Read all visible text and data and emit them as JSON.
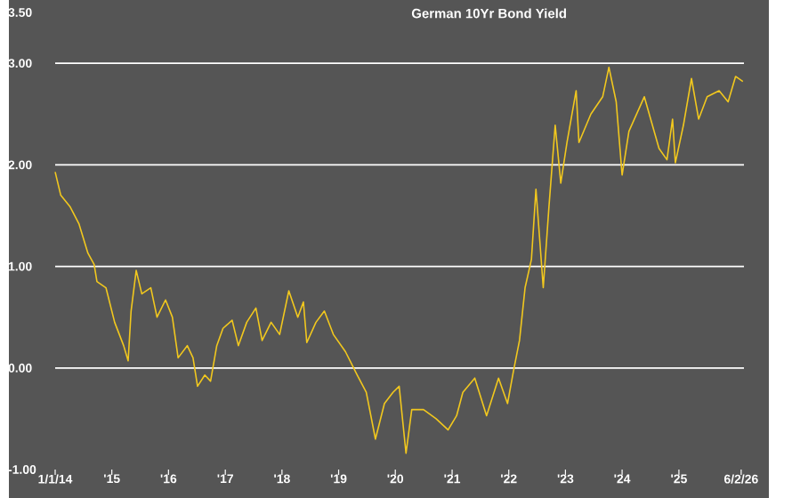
{
  "chart_data": {
    "type": "line",
    "title": "German 10Yr Bond Yield",
    "x": [
      "2014-01-01",
      "2014-02-06",
      "2014-04-06",
      "2014-06-03",
      "2014-07-31",
      "2014-09-09",
      "2014-09-27",
      "2014-11-24",
      "2015-01-19",
      "2015-03-18",
      "2015-04-16",
      "2015-05-05",
      "2015-06-07",
      "2015-07-13",
      "2015-09-09",
      "2015-10-19",
      "2015-12-13",
      "2016-01-26",
      "2016-03-03",
      "2016-05-01",
      "2016-06-07",
      "2016-07-06",
      "2016-08-22",
      "2016-09-28",
      "2016-11-07",
      "2016-12-17",
      "2017-02-14",
      "2017-03-26",
      "2017-05-19",
      "2017-07-17",
      "2017-08-26",
      "2017-10-23",
      "2017-12-17",
      "2018-02-14",
      "2018-04-13",
      "2018-05-19",
      "2018-06-10",
      "2018-08-08",
      "2018-10-01",
      "2018-11-28",
      "2019-02-14",
      "2019-05-01",
      "2019-06-28",
      "2019-08-26",
      "2019-10-23",
      "2019-12-17",
      "2020-01-26",
      "2020-03-10",
      "2020-04-16",
      "2020-07-01",
      "2020-09-20",
      "2020-12-06",
      "2021-01-30",
      "2021-03-11",
      "2021-05-27",
      "2021-08-11",
      "2021-10-27",
      "2021-12-24",
      "2022-01-30",
      "2022-03-11",
      "2022-04-16",
      "2022-05-27",
      "2022-06-25",
      "2022-07-20",
      "2022-08-11",
      "2022-09-17",
      "2022-10-27",
      "2022-12-02",
      "2023-01-11",
      "2023-03-11",
      "2023-03-29",
      "2023-06-14",
      "2023-08-29",
      "2023-10-08",
      "2023-11-24",
      "2024-01-01",
      "2024-02-14",
      "2024-05-23",
      "2024-08-26",
      "2024-10-16",
      "2024-11-21",
      "2024-12-09",
      "2025-01-30",
      "2025-03-23",
      "2025-05-08",
      "2025-07-02",
      "2025-09-17",
      "2025-11-14",
      "2026-01-01",
      "2026-02-17"
    ],
    "series": [
      {
        "color": "#f2c81e",
        "values": [
          1.93,
          1.7,
          1.59,
          1.42,
          1.13,
          1.02,
          0.85,
          0.79,
          0.45,
          0.22,
          0.07,
          0.56,
          0.96,
          0.73,
          0.79,
          0.5,
          0.67,
          0.5,
          0.1,
          0.22,
          0.1,
          -0.18,
          -0.07,
          -0.13,
          0.22,
          0.39,
          0.47,
          0.22,
          0.45,
          0.59,
          0.27,
          0.45,
          0.33,
          0.76,
          0.5,
          0.65,
          0.25,
          0.45,
          0.56,
          0.33,
          0.16,
          -0.07,
          -0.24,
          -0.7,
          -0.35,
          -0.24,
          -0.18,
          -0.84,
          -0.41,
          -0.41,
          -0.5,
          -0.61,
          -0.47,
          -0.24,
          -0.1,
          -0.47,
          -0.1,
          -0.35,
          -0.04,
          0.27,
          0.79,
          1.07,
          1.76,
          1.25,
          0.79,
          1.59,
          2.39,
          1.82,
          2.22,
          2.73,
          2.22,
          2.5,
          2.67,
          2.96,
          2.62,
          1.9,
          2.33,
          2.67,
          2.16,
          2.05,
          2.45,
          2.02,
          2.39,
          2.85,
          2.45,
          2.67,
          2.73,
          2.62,
          2.87,
          2.82
        ]
      }
    ],
    "xlim": [
      "2014-01-01",
      "2026-02-24"
    ],
    "xticks": [
      {
        "value": "2014-01-01",
        "label": "1/1/14"
      },
      {
        "value": "2015-01-01",
        "label": "'15"
      },
      {
        "value": "2016-01-01",
        "label": "'16"
      },
      {
        "value": "2017-01-01",
        "label": "'17"
      },
      {
        "value": "2018-01-01",
        "label": "'18"
      },
      {
        "value": "2019-01-01",
        "label": "'19"
      },
      {
        "value": "2020-01-01",
        "label": "'20"
      },
      {
        "value": "2021-01-01",
        "label": "'21"
      },
      {
        "value": "2022-01-01",
        "label": "'22"
      },
      {
        "value": "2023-01-01",
        "label": "'23"
      },
      {
        "value": "2024-01-01",
        "label": "'24"
      },
      {
        "value": "2025-01-01",
        "label": "'25"
      },
      {
        "value": "2026-02-06",
        "label": "6/2/26"
      }
    ],
    "ylim": [
      -1,
      3.5
    ],
    "yticks": [
      {
        "value": -1,
        "label": "-1.00"
      },
      {
        "value": 0,
        "label": "0.00"
      },
      {
        "value": 1,
        "label": "1.00"
      },
      {
        "value": 2,
        "label": "2.00"
      },
      {
        "value": 3,
        "label": "3.00"
      },
      {
        "value": 3.5,
        "label": "3.50"
      }
    ],
    "grid": "y"
  }
}
